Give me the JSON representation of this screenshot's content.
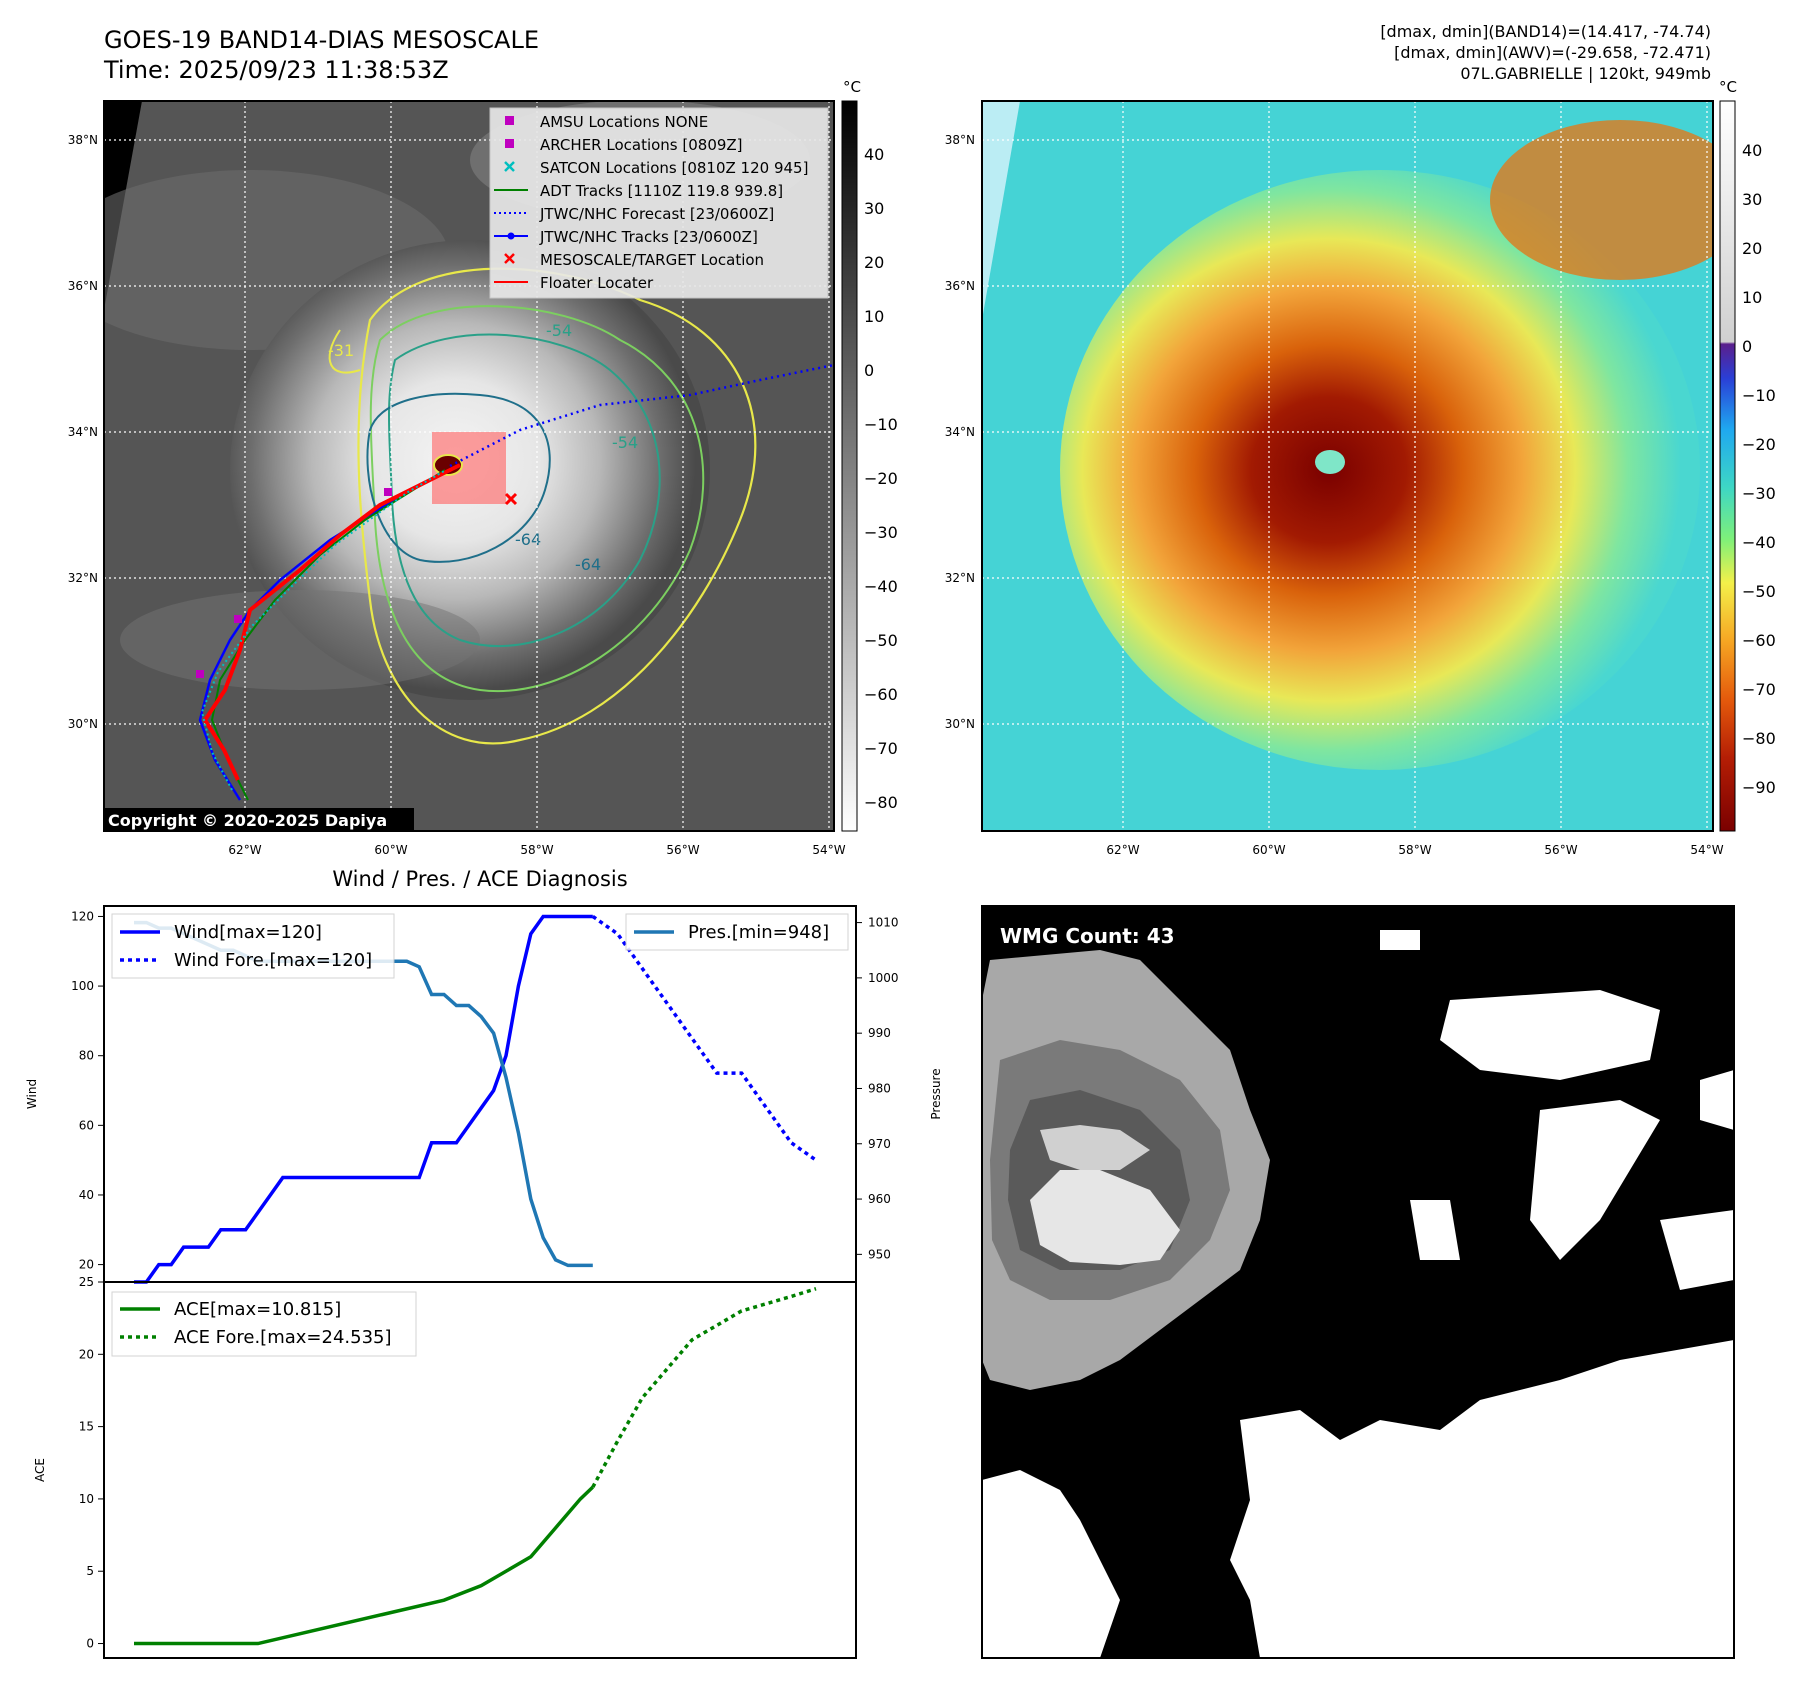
{
  "header": {
    "title_line1": "GOES-19 BAND14-DIAS MESOSCALE",
    "title_line2": "Time: 2025/09/23 11:38:53Z",
    "right_line1": "[dmax, dmin](BAND14)=(14.417, -74.74)",
    "right_line2": "[dmax, dmin](AWV)=(-29.658, -72.471)",
    "right_line3": "07L.GABRIELLE | 120kt, 949mb"
  },
  "map": {
    "lat_labels": [
      "38°N",
      "36°N",
      "34°N",
      "32°N",
      "30°N"
    ],
    "lon_labels": [
      "62°W",
      "60°W",
      "58°W",
      "56°W",
      "54°W"
    ],
    "copyright": "Copyright © 2020-2025 Dapiya",
    "contour_labels": [
      "-31",
      "-54",
      "-54",
      "-64",
      "-64"
    ],
    "legend": [
      {
        "label": "AMSU Locations NONE",
        "color": "#bf00bf",
        "marker": "square"
      },
      {
        "label": "ARCHER Locations [0809Z]",
        "color": "#bf00bf",
        "marker": "square"
      },
      {
        "label": "SATCON Locations [0810Z 120 945]",
        "color": "#00bfbf",
        "marker": "x"
      },
      {
        "label": "ADT Tracks [1110Z 119.8 939.8]",
        "color": "#008000",
        "marker": "line"
      },
      {
        "label": "JTWC/NHC Forecast [23/0600Z]",
        "color": "#0000ff",
        "marker": "dotted"
      },
      {
        "label": "JTWC/NHC Tracks [23/0600Z]",
        "color": "#0000ff",
        "marker": "line-dot"
      },
      {
        "label": "MESOSCALE/TARGET Location",
        "color": "#ff0000",
        "marker": "x"
      },
      {
        "label": "Floater Locater",
        "color": "#ff0000",
        "marker": "line"
      }
    ]
  },
  "colorbar_left": {
    "unit": "°C",
    "ticks": [
      "40",
      "30",
      "20",
      "10",
      "0",
      "−10",
      "−20",
      "−30",
      "−40",
      "−50",
      "−60",
      "−70",
      "−80"
    ]
  },
  "colorbar_right": {
    "unit": "°C",
    "ticks": [
      "40",
      "30",
      "20",
      "10",
      "0",
      "−10",
      "−20",
      "−30",
      "−40",
      "−50",
      "−60",
      "−70",
      "−80",
      "−90"
    ]
  },
  "wmg": {
    "count_label": "WMG Count: 43"
  },
  "chart_data": [
    {
      "type": "line",
      "title": "Wind / Pres. / ACE Diagnosis",
      "ylabel": "Wind",
      "ylim": [
        15,
        123
      ],
      "yticks": [
        20,
        40,
        60,
        80,
        100,
        120
      ],
      "x_range": [
        0,
        55
      ],
      "series": [
        {
          "name": "Wind[max=120]",
          "style": "solid",
          "color": "#0000ff",
          "x": [
            0,
            1,
            2,
            3,
            4,
            5,
            6,
            7,
            8,
            9,
            10,
            11,
            12,
            13,
            14,
            15,
            16,
            17,
            18,
            19,
            20,
            21,
            22,
            23,
            24,
            25,
            26,
            27,
            28,
            29,
            30,
            31,
            32,
            33,
            34,
            35,
            36,
            37
          ],
          "values": [
            15,
            15,
            20,
            20,
            25,
            25,
            25,
            30,
            30,
            30,
            35,
            40,
            45,
            45,
            45,
            45,
            45,
            45,
            45,
            45,
            45,
            45,
            45,
            45,
            55,
            55,
            55,
            60,
            65,
            70,
            80,
            100,
            115,
            120,
            120,
            120,
            120,
            120
          ]
        },
        {
          "name": "Wind Fore.[max=120]",
          "style": "dotted",
          "color": "#0000ff",
          "x": [
            37,
            39,
            41,
            43,
            45,
            47,
            49,
            51,
            53,
            55
          ],
          "values": [
            120,
            115,
            105,
            95,
            85,
            75,
            75,
            65,
            55,
            50
          ]
        }
      ]
    },
    {
      "type": "line",
      "ylabel": "Pressure",
      "ylim": [
        945,
        1013
      ],
      "yticks": [
        950,
        960,
        970,
        980,
        990,
        1000,
        1010
      ],
      "series": [
        {
          "name": "Pres.[min=948]",
          "style": "solid",
          "color": "#1f77b4",
          "x": [
            0,
            1,
            2,
            3,
            4,
            5,
            6,
            7,
            8,
            9,
            10,
            11,
            12,
            13,
            14,
            15,
            16,
            17,
            18,
            19,
            20,
            21,
            22,
            23,
            24,
            25,
            26,
            27,
            28,
            29,
            30,
            31,
            32,
            33,
            34,
            35,
            36,
            37
          ],
          "values": [
            1010,
            1010,
            1009,
            1009,
            1008,
            1007,
            1006,
            1005,
            1005,
            1004,
            1003,
            1003,
            1003,
            1003,
            1003,
            1003,
            1003,
            1003,
            1003,
            1003,
            1003,
            1003,
            1003,
            1002,
            997,
            997,
            995,
            995,
            993,
            990,
            982,
            972,
            960,
            953,
            949,
            948,
            948,
            948
          ]
        }
      ]
    },
    {
      "type": "line",
      "ylabel": "ACE",
      "ylim": [
        -1,
        25
      ],
      "yticks": [
        0,
        5,
        10,
        15,
        20,
        25
      ],
      "series": [
        {
          "name": "ACE[max=10.815]",
          "style": "solid",
          "color": "#008000",
          "x": [
            0,
            10,
            15,
            20,
            25,
            28,
            30,
            32,
            34,
            36,
            37
          ],
          "values": [
            0,
            0,
            1,
            2,
            3,
            4,
            5,
            6,
            8,
            10,
            10.815
          ]
        },
        {
          "name": "ACE Fore.[max=24.535]",
          "style": "dotted",
          "color": "#008000",
          "x": [
            37,
            39,
            41,
            43,
            45,
            47,
            49,
            51,
            53,
            55
          ],
          "values": [
            10.815,
            14,
            17,
            19,
            21,
            22,
            23,
            23.5,
            24,
            24.535
          ]
        }
      ]
    }
  ]
}
